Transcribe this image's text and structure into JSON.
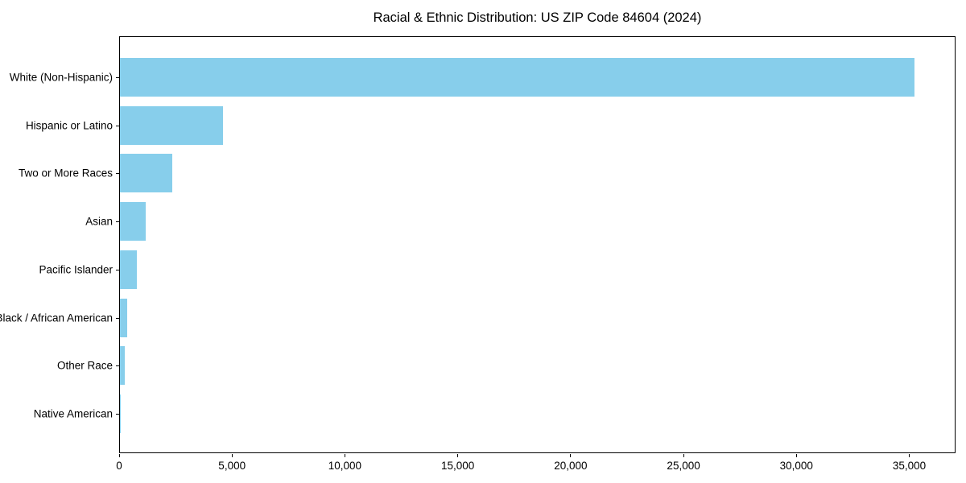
{
  "chart_data": {
    "type": "bar",
    "orientation": "horizontal",
    "title": "Racial & Ethnic Distribution: US ZIP Code 84604 (2024)",
    "categories": [
      "White (Non-Hispanic)",
      "Hispanic or Latino",
      "Two or More Races",
      "Asian",
      "Pacific Islander",
      "Black / African American",
      "Other Race",
      "Native American"
    ],
    "values": [
      35250,
      4590,
      2340,
      1160,
      750,
      330,
      210,
      40
    ],
    "xlabel": "",
    "ylabel": "",
    "xlim": [
      0,
      37050
    ],
    "x_ticks": [
      0,
      5000,
      10000,
      15000,
      20000,
      25000,
      30000,
      35000
    ],
    "x_tick_labels": [
      "0",
      "5,000",
      "10,000",
      "15,000",
      "20,000",
      "25,000",
      "30,000",
      "35,000"
    ],
    "bar_color": "#87CEEB",
    "spine_color": "#000000",
    "background_color": "#ffffff",
    "grid": false,
    "legend": "none",
    "sort_order": "descending, largest at top"
  }
}
